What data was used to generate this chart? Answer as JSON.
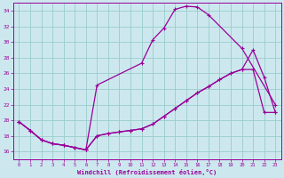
{
  "xlabel": "Windchill (Refroidissement éolien,°C)",
  "bg_color": "#cce8ee",
  "grid_color": "#99cccc",
  "line_color": "#990099",
  "xlim": [
    -0.5,
    23.5
  ],
  "ylim": [
    15.0,
    35.0
  ],
  "yticks": [
    16,
    18,
    20,
    22,
    24,
    26,
    28,
    30,
    32,
    34
  ],
  "xticks": [
    0,
    1,
    2,
    3,
    4,
    5,
    6,
    7,
    8,
    9,
    10,
    11,
    12,
    13,
    14,
    15,
    16,
    17,
    18,
    19,
    20,
    21,
    22,
    23
  ],
  "curve1_x": [
    0,
    1,
    2,
    3,
    4,
    5,
    6,
    7,
    11,
    12,
    13,
    14,
    15,
    16,
    17,
    20,
    23
  ],
  "curve1_y": [
    19.8,
    18.7,
    17.5,
    17.0,
    16.8,
    16.5,
    16.2,
    24.5,
    27.3,
    30.3,
    31.8,
    34.2,
    34.6,
    34.5,
    33.5,
    29.2,
    22.0
  ],
  "curve2_x": [
    0,
    1,
    2,
    3,
    4,
    5,
    6,
    7,
    8,
    9,
    10,
    11,
    12,
    13,
    14,
    15,
    16,
    17,
    18,
    19,
    20,
    21,
    22,
    23
  ],
  "curve2_y": [
    19.8,
    18.7,
    17.5,
    17.0,
    16.8,
    16.5,
    16.2,
    18.0,
    18.3,
    18.5,
    18.7,
    18.9,
    19.5,
    20.5,
    21.5,
    22.5,
    23.5,
    24.3,
    25.2,
    26.0,
    26.5,
    29.0,
    25.5,
    21.0
  ],
  "curve3_x": [
    0,
    1,
    2,
    3,
    4,
    5,
    6,
    7,
    8,
    9,
    10,
    11,
    12,
    13,
    14,
    15,
    16,
    17,
    18,
    19,
    20,
    21,
    22,
    23
  ],
  "curve3_y": [
    19.8,
    18.7,
    17.5,
    17.0,
    16.8,
    16.5,
    16.2,
    18.0,
    18.3,
    18.5,
    18.7,
    18.9,
    19.5,
    20.5,
    21.5,
    22.5,
    23.5,
    24.3,
    25.2,
    26.0,
    26.5,
    26.5,
    21.0,
    21.0
  ]
}
